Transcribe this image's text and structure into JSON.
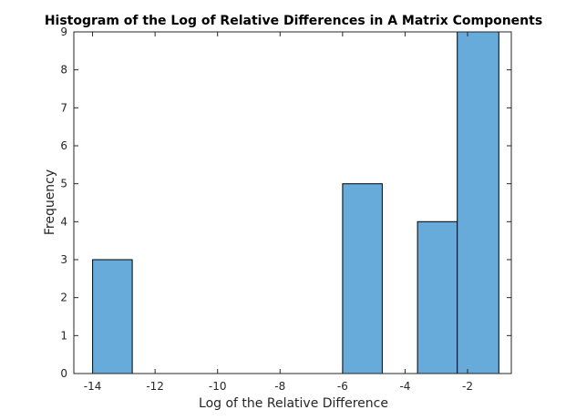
{
  "chart_data": {
    "type": "bar",
    "title": "Histogram of the Log of Relative Differences in A Matrix Components",
    "xlabel": "Log of the Relative Difference",
    "ylabel": "Frequency",
    "xlim": [
      -14.6,
      -0.6
    ],
    "ylim": [
      0,
      9
    ],
    "x_ticks": [
      -14,
      -12,
      -10,
      -8,
      -6,
      -4,
      -2
    ],
    "y_ticks": [
      0,
      1,
      2,
      3,
      4,
      5,
      6,
      7,
      8,
      9
    ],
    "bin_edges": [
      -13.97,
      -12.7,
      -11.42,
      -10.15,
      -8.88,
      -7.6,
      -6.33,
      -5.06,
      -3.78,
      -2.51,
      -1.24
    ],
    "bin_edges_adjusted": [
      -14.0,
      -12.73,
      -11.46,
      -10.19,
      -8.92,
      -7.65,
      -6.0,
      -4.73,
      -3.6,
      -2.33,
      -1.0
    ],
    "counts": [
      3,
      0,
      0,
      0,
      0,
      0,
      5,
      0,
      4,
      9
    ],
    "bar_color": "#66abd9",
    "bar_edge_color": "#000000",
    "grid": false,
    "legend": "none"
  }
}
